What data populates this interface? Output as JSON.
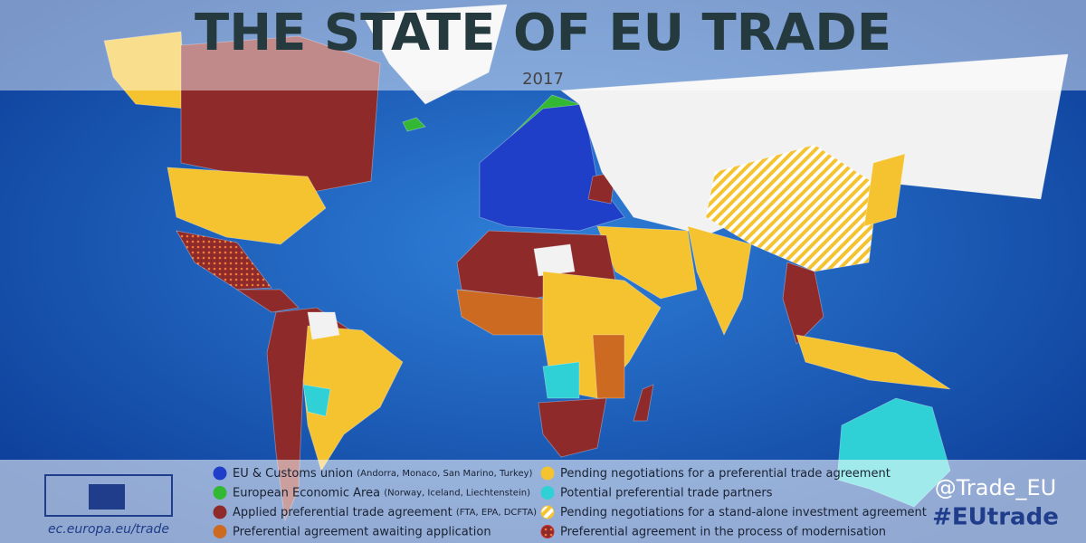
{
  "header": {
    "title": "THE STATE OF EU TRADE",
    "year": "2017"
  },
  "legend": {
    "items": [
      {
        "label": "EU & Customs union",
        "note": "(Andorra, Monaco, San Marino, Turkey)",
        "color": "#1f3fc8"
      },
      {
        "label": "European Economic Area",
        "note": "(Norway, Iceland, Liechtenstein)",
        "color": "#33b833"
      },
      {
        "label": "Applied preferential trade agreement",
        "note": "(FTA, EPA, DCFTA)",
        "color": "#8e2a2a"
      },
      {
        "label": "Preferential agreement awaiting application",
        "color": "#cc6a22"
      },
      {
        "label": "Pending negotiations for a preferential trade agreement",
        "color": "#f5c330"
      },
      {
        "label": "Potential preferential trade partners",
        "color": "#2fd0d6"
      },
      {
        "label": "Pending negotiations for a stand-alone investment agreement",
        "color": "#f5c330",
        "pattern": "hatch"
      },
      {
        "label": "Preferential agreement in the process of modernisation",
        "color": "#d42a2a",
        "pattern": "dots"
      }
    ]
  },
  "footer": {
    "url": "ec.europa.eu/trade",
    "twitter": "@Trade_EU",
    "hashtag": "#EUtrade"
  }
}
